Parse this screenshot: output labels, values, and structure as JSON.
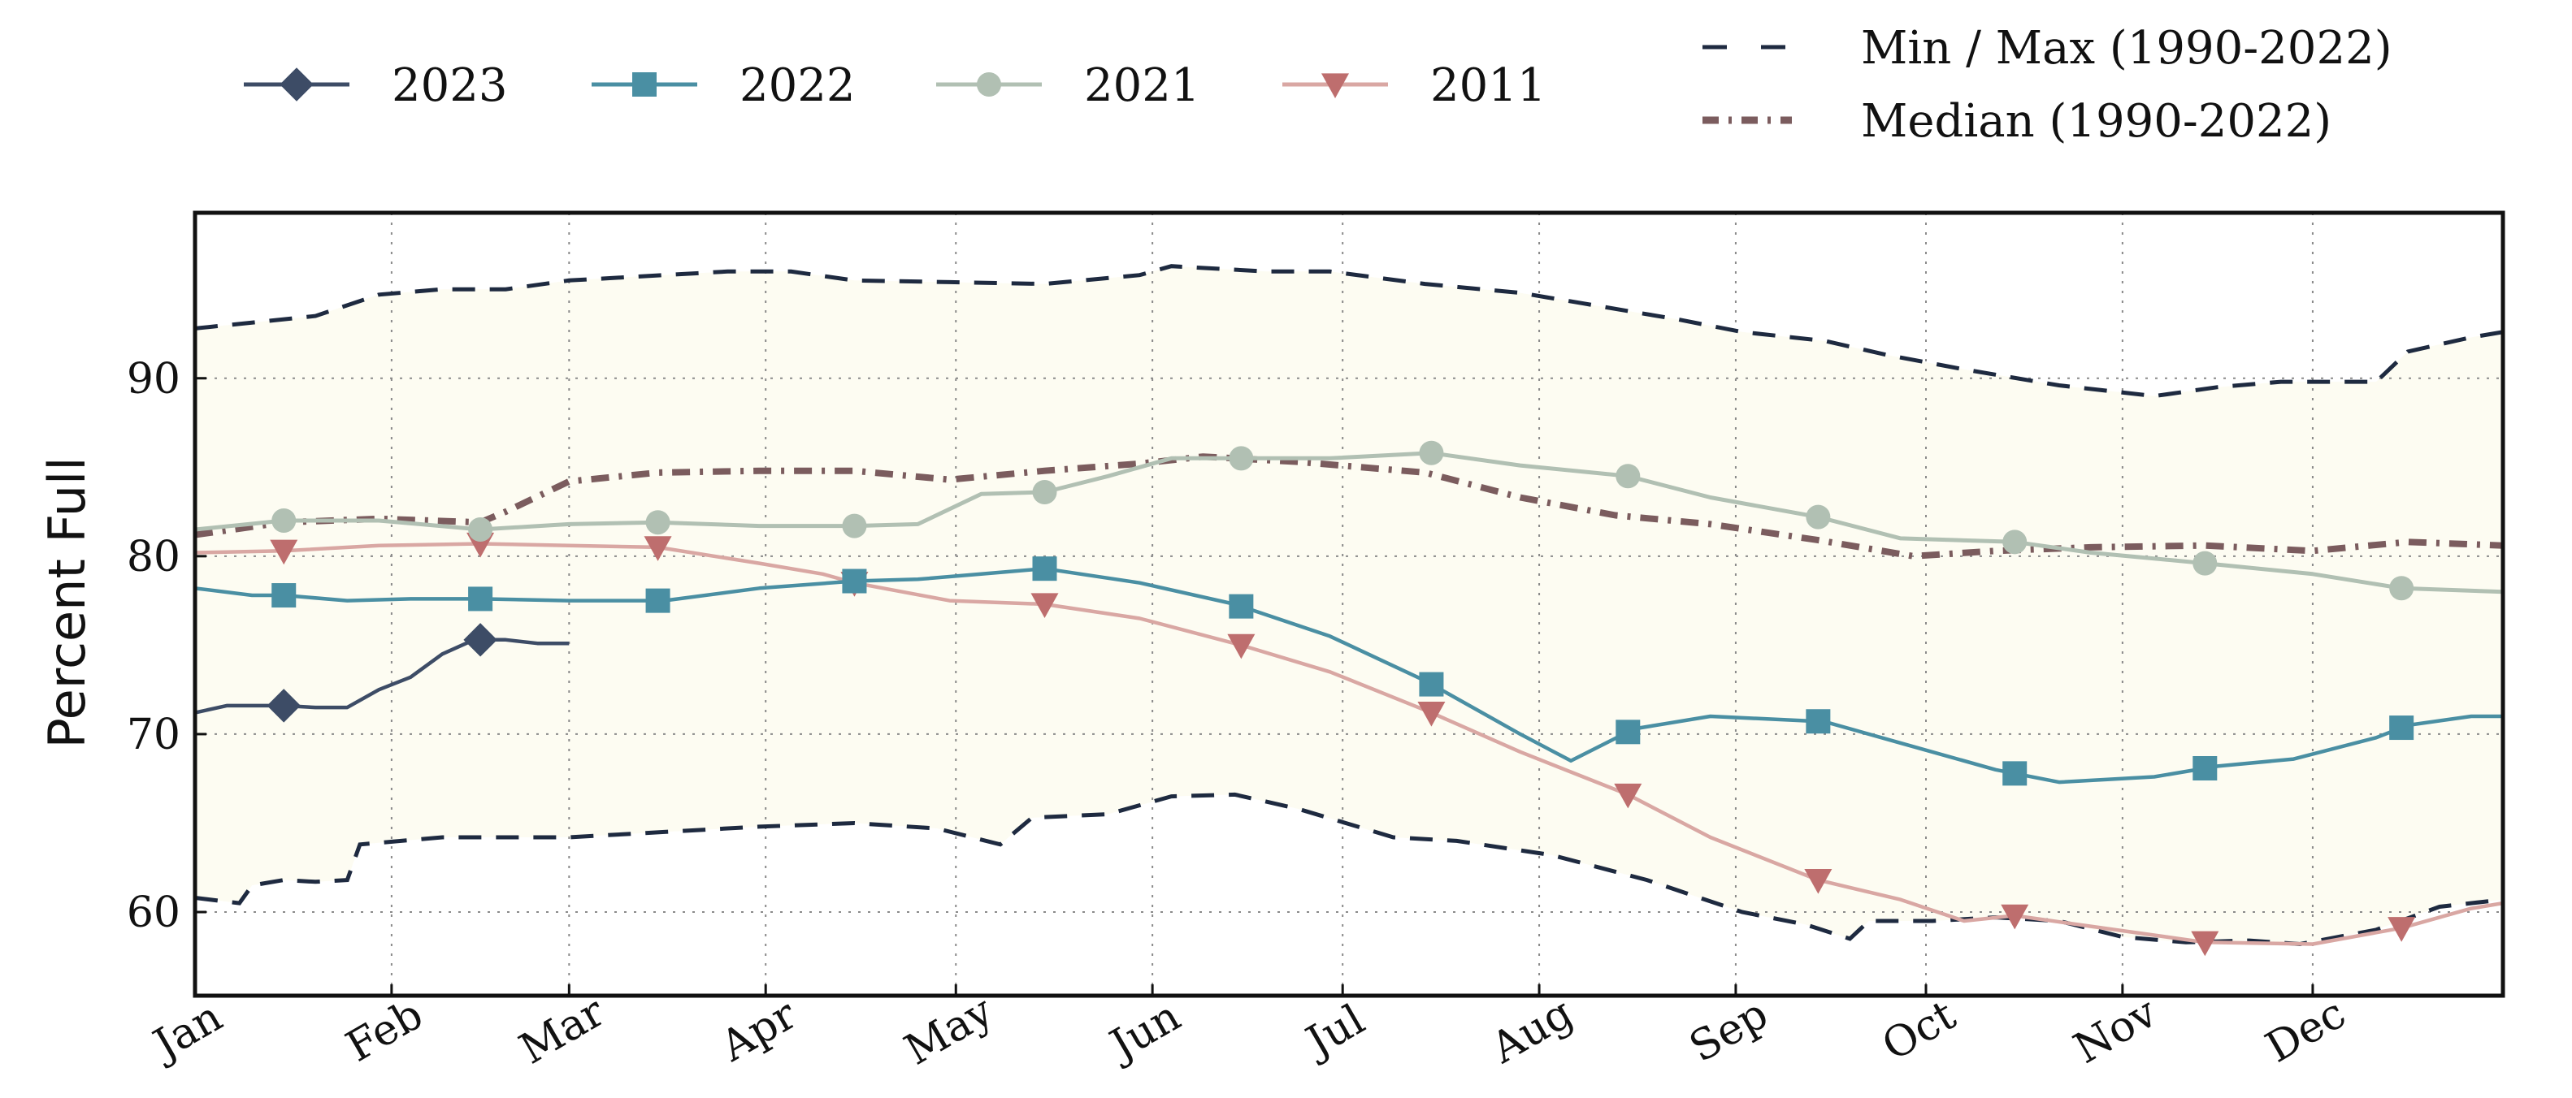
{
  "chart_data": {
    "type": "line",
    "title": "",
    "xlabel": "",
    "ylabel": "Percent Full",
    "xlim": [
      1,
      365
    ],
    "ylim": [
      55.3,
      99.3
    ],
    "grid": true,
    "legend_position": "top",
    "x_ticks": [
      {
        "x": 1,
        "label": "Jan"
      },
      {
        "x": 32,
        "label": "Feb"
      },
      {
        "x": 60,
        "label": "Mar"
      },
      {
        "x": 91,
        "label": "Apr"
      },
      {
        "x": 121,
        "label": "May"
      },
      {
        "x": 152,
        "label": "Jun"
      },
      {
        "x": 182,
        "label": "Jul"
      },
      {
        "x": 213,
        "label": "Aug"
      },
      {
        "x": 244,
        "label": "Sep"
      },
      {
        "x": 274,
        "label": "Oct"
      },
      {
        "x": 305,
        "label": "Nov"
      },
      {
        "x": 335,
        "label": "Dec"
      }
    ],
    "y_ticks": [
      60,
      70,
      80,
      90
    ],
    "band": {
      "name": "Min / Max (1990-2022)",
      "color": "#1e2a40",
      "fill": "#fdfcf2",
      "max": [
        [
          1,
          92.8
        ],
        [
          12,
          93.2
        ],
        [
          20,
          93.5
        ],
        [
          30,
          94.7
        ],
        [
          40,
          95
        ],
        [
          50,
          95
        ],
        [
          60,
          95.5
        ],
        [
          75,
          95.8
        ],
        [
          85,
          96
        ],
        [
          95,
          96
        ],
        [
          105,
          95.5
        ],
        [
          120,
          95.4
        ],
        [
          135,
          95.3
        ],
        [
          150,
          95.8
        ],
        [
          155,
          96.3
        ],
        [
          170,
          96
        ],
        [
          180,
          96
        ],
        [
          195,
          95.3
        ],
        [
          210,
          94.8
        ],
        [
          220,
          94.2
        ],
        [
          235,
          93.3
        ],
        [
          245,
          92.6
        ],
        [
          258,
          92.1
        ],
        [
          268,
          91.3
        ],
        [
          280,
          90.5
        ],
        [
          295,
          89.6
        ],
        [
          310,
          89
        ],
        [
          320,
          89.5
        ],
        [
          330,
          89.8
        ],
        [
          345,
          89.8
        ],
        [
          350,
          91.5
        ],
        [
          360,
          92.3
        ],
        [
          365,
          92.6
        ]
      ],
      "min": [
        [
          1,
          60.8
        ],
        [
          8,
          60.5
        ],
        [
          10,
          61.5
        ],
        [
          15,
          61.8
        ],
        [
          20,
          61.7
        ],
        [
          25,
          61.8
        ],
        [
          27,
          63.8
        ],
        [
          40,
          64.2
        ],
        [
          50,
          64.2
        ],
        [
          60,
          64.2
        ],
        [
          75,
          64.5
        ],
        [
          90,
          64.8
        ],
        [
          105,
          65
        ],
        [
          118,
          64.7
        ],
        [
          128,
          63.8
        ],
        [
          133,
          65.3
        ],
        [
          145,
          65.5
        ],
        [
          155,
          66.5
        ],
        [
          165,
          66.6
        ],
        [
          175,
          65.8
        ],
        [
          190,
          64.2
        ],
        [
          200,
          64
        ],
        [
          215,
          63.2
        ],
        [
          230,
          61.8
        ],
        [
          245,
          60
        ],
        [
          255,
          59.3
        ],
        [
          262,
          58.5
        ],
        [
          265,
          59.5
        ],
        [
          275,
          59.5
        ],
        [
          285,
          59.7
        ],
        [
          295,
          59.5
        ],
        [
          305,
          58.6
        ],
        [
          315,
          58.3
        ],
        [
          325,
          58.4
        ],
        [
          333,
          58.2
        ],
        [
          345,
          59
        ],
        [
          355,
          60.3
        ],
        [
          365,
          60.7
        ]
      ]
    },
    "series": [
      {
        "name": "2023",
        "color": "#3d4c66",
        "marker": "diamond",
        "width": 4.5,
        "points": [
          [
            1,
            71.2
          ],
          [
            6,
            71.6
          ],
          [
            15,
            71.6
          ],
          [
            20,
            71.5
          ],
          [
            25,
            71.5
          ],
          [
            30,
            72.5
          ],
          [
            35,
            73.2
          ],
          [
            40,
            74.5
          ],
          [
            45,
            75.3
          ],
          [
            50,
            75.3
          ],
          [
            55,
            75.1
          ],
          [
            60,
            75.1
          ]
        ],
        "marker_x": [
          15,
          46
        ]
      },
      {
        "name": "2022",
        "color": "#4a8fa3",
        "marker": "square",
        "width": 4.5,
        "points": [
          [
            1,
            78.2
          ],
          [
            10,
            77.8
          ],
          [
            15,
            77.8
          ],
          [
            25,
            77.5
          ],
          [
            35,
            77.6
          ],
          [
            46,
            77.6
          ],
          [
            60,
            77.5
          ],
          [
            75,
            77.5
          ],
          [
            90,
            78.2
          ],
          [
            105,
            78.6
          ],
          [
            115,
            78.7
          ],
          [
            125,
            79
          ],
          [
            135,
            79.3
          ],
          [
            150,
            78.5
          ],
          [
            165,
            77.3
          ],
          [
            180,
            75.5
          ],
          [
            195,
            73
          ],
          [
            210,
            70
          ],
          [
            218,
            68.5
          ],
          [
            228,
            70.3
          ],
          [
            240,
            71
          ],
          [
            258,
            70.7
          ],
          [
            270,
            69.5
          ],
          [
            285,
            68
          ],
          [
            295,
            67.3
          ],
          [
            310,
            67.6
          ],
          [
            320,
            68.2
          ],
          [
            332,
            68.6
          ],
          [
            345,
            69.8
          ],
          [
            350,
            70.5
          ],
          [
            360,
            71
          ],
          [
            365,
            71
          ]
        ],
        "marker_x": [
          15,
          46,
          74,
          105,
          135,
          166,
          196,
          227,
          257,
          288,
          318,
          349
        ]
      },
      {
        "name": "2021",
        "color": "#b1c0b3",
        "marker": "circle",
        "width": 5,
        "points": [
          [
            1,
            81.5
          ],
          [
            15,
            82
          ],
          [
            30,
            82
          ],
          [
            46,
            81.5
          ],
          [
            60,
            81.8
          ],
          [
            74,
            81.9
          ],
          [
            90,
            81.7
          ],
          [
            105,
            81.7
          ],
          [
            115,
            81.8
          ],
          [
            125,
            83.5
          ],
          [
            135,
            83.6
          ],
          [
            145,
            84.5
          ],
          [
            155,
            85.5
          ],
          [
            166,
            85.5
          ],
          [
            180,
            85.5
          ],
          [
            196,
            85.8
          ],
          [
            210,
            85.1
          ],
          [
            227,
            84.5
          ],
          [
            240,
            83.3
          ],
          [
            257,
            82.2
          ],
          [
            270,
            81
          ],
          [
            288,
            80.8
          ],
          [
            300,
            80.2
          ],
          [
            318,
            79.6
          ],
          [
            335,
            79
          ],
          [
            349,
            78.2
          ],
          [
            365,
            78
          ]
        ],
        "marker_x": [
          15,
          46,
          74,
          105,
          135,
          166,
          196,
          227,
          257,
          288,
          318,
          349
        ]
      },
      {
        "name": "2011",
        "color": "#d9a7a3",
        "marker_color": "#be6e6e",
        "marker": "triangle-down",
        "width": 4.5,
        "points": [
          [
            1,
            80.2
          ],
          [
            15,
            80.3
          ],
          [
            30,
            80.6
          ],
          [
            46,
            80.7
          ],
          [
            60,
            80.6
          ],
          [
            74,
            80.5
          ],
          [
            90,
            79.6
          ],
          [
            100,
            79
          ],
          [
            105,
            78.5
          ],
          [
            120,
            77.5
          ],
          [
            135,
            77.3
          ],
          [
            150,
            76.5
          ],
          [
            166,
            75
          ],
          [
            180,
            73.5
          ],
          [
            196,
            71.2
          ],
          [
            210,
            69
          ],
          [
            227,
            66.6
          ],
          [
            240,
            64.2
          ],
          [
            257,
            61.8
          ],
          [
            270,
            60.7
          ],
          [
            280,
            59.5
          ],
          [
            288,
            59.8
          ],
          [
            300,
            59.2
          ],
          [
            318,
            58.3
          ],
          [
            335,
            58.2
          ],
          [
            349,
            59.1
          ],
          [
            360,
            60.2
          ],
          [
            365,
            60.5
          ]
        ],
        "marker_x": [
          15,
          46,
          74,
          105,
          135,
          166,
          196,
          227,
          257,
          288,
          318,
          349
        ]
      },
      {
        "name": "Median (1990-2022)",
        "color": "#7b5c5e",
        "dash": "dashdot",
        "width": 8,
        "points": [
          [
            1,
            81.2
          ],
          [
            15,
            81.9
          ],
          [
            30,
            82.1
          ],
          [
            46,
            81.9
          ],
          [
            50,
            82.5
          ],
          [
            60,
            84.2
          ],
          [
            74,
            84.7
          ],
          [
            90,
            84.8
          ],
          [
            105,
            84.8
          ],
          [
            120,
            84.3
          ],
          [
            135,
            84.8
          ],
          [
            150,
            85.2
          ],
          [
            160,
            85.6
          ],
          [
            175,
            85.3
          ],
          [
            195,
            84.7
          ],
          [
            210,
            83.3
          ],
          [
            225,
            82.3
          ],
          [
            240,
            81.8
          ],
          [
            257,
            80.9
          ],
          [
            272,
            80
          ],
          [
            285,
            80.3
          ],
          [
            300,
            80.5
          ],
          [
            318,
            80.6
          ],
          [
            335,
            80.3
          ],
          [
            350,
            80.8
          ],
          [
            365,
            80.6
          ]
        ]
      }
    ],
    "legend": [
      {
        "label": "2023",
        "series": 0
      },
      {
        "label": "2022",
        "series": 1
      },
      {
        "label": "2021",
        "series": 2
      },
      {
        "label": "2011",
        "series": 3
      },
      {
        "label": "Min / Max (1990-2022)",
        "style": "dashed"
      },
      {
        "label": "Median (1990-2022)",
        "style": "dashdot"
      }
    ]
  }
}
